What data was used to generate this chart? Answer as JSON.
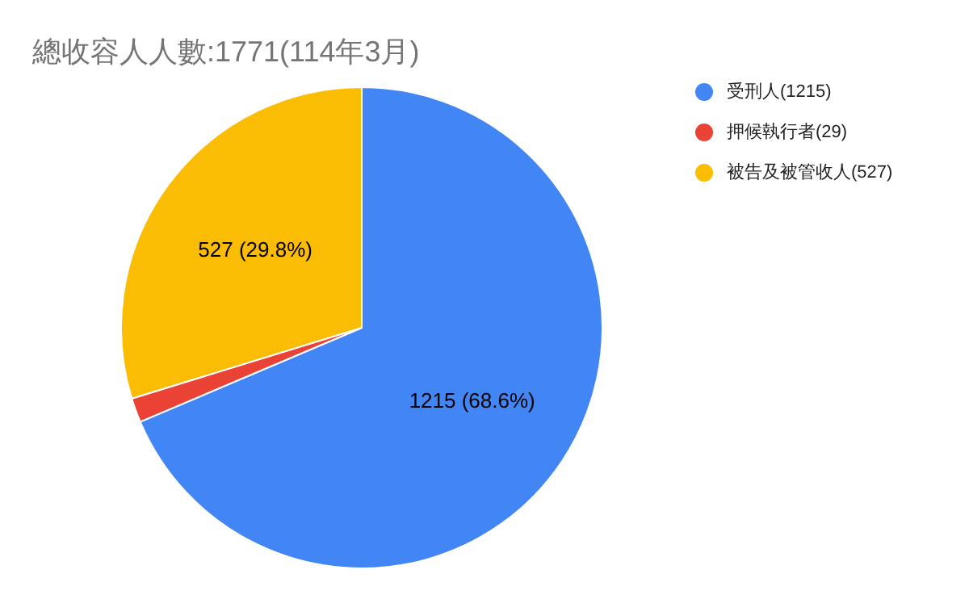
{
  "chart_data": {
    "type": "pie",
    "title": "總收容人人數:1771(114年3月)",
    "categories": [
      "受刑人(1215)",
      "押候執行者(29)",
      "被告及被管收人(527)"
    ],
    "values": [
      1215,
      29,
      527
    ],
    "colors": [
      "#4285f4",
      "#ea4335",
      "#fbbc04"
    ],
    "value_labels": [
      "1215 (68.6%)",
      null,
      "527 (29.8%)"
    ],
    "legend": "right"
  }
}
